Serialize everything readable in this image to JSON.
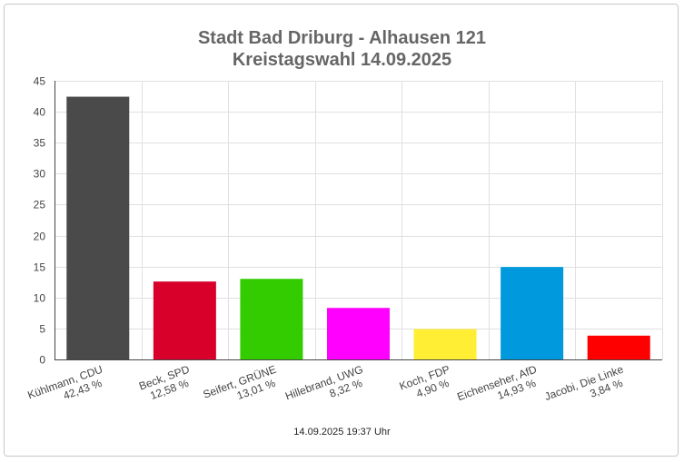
{
  "chart_data": {
    "type": "bar",
    "title": "Stadt Bad Driburg - Alhausen 121",
    "subtitle": "Kreistagswahl 14.09.2025",
    "categories": [
      "Kühlmann, CDU",
      "Beck, SPD",
      "Seifert, GRÜNE",
      "Hillebrand, UWG",
      "Koch, FDP",
      "Eichenseher, AfD",
      "Jacobi, Die Linke"
    ],
    "value_labels": [
      "42,43 %",
      "12,58 %",
      "13,01 %",
      "8,32 %",
      "4,90 %",
      "14,93 %",
      "3,84 %"
    ],
    "values": [
      42.43,
      12.58,
      13.01,
      8.32,
      4.9,
      14.93,
      3.84
    ],
    "colors": [
      "#4a4a4a",
      "#d8002a",
      "#33cc00",
      "#ff00ff",
      "#ffee33",
      "#0099dd",
      "#ff0000"
    ],
    "ylim": [
      0,
      45
    ],
    "yticks": [
      "0",
      "5",
      "10",
      "15",
      "20",
      "25",
      "30",
      "35",
      "40",
      "45"
    ],
    "grid": true,
    "xlabel": "",
    "ylabel": ""
  },
  "footer": "14.09.2025 19:37 Uhr"
}
